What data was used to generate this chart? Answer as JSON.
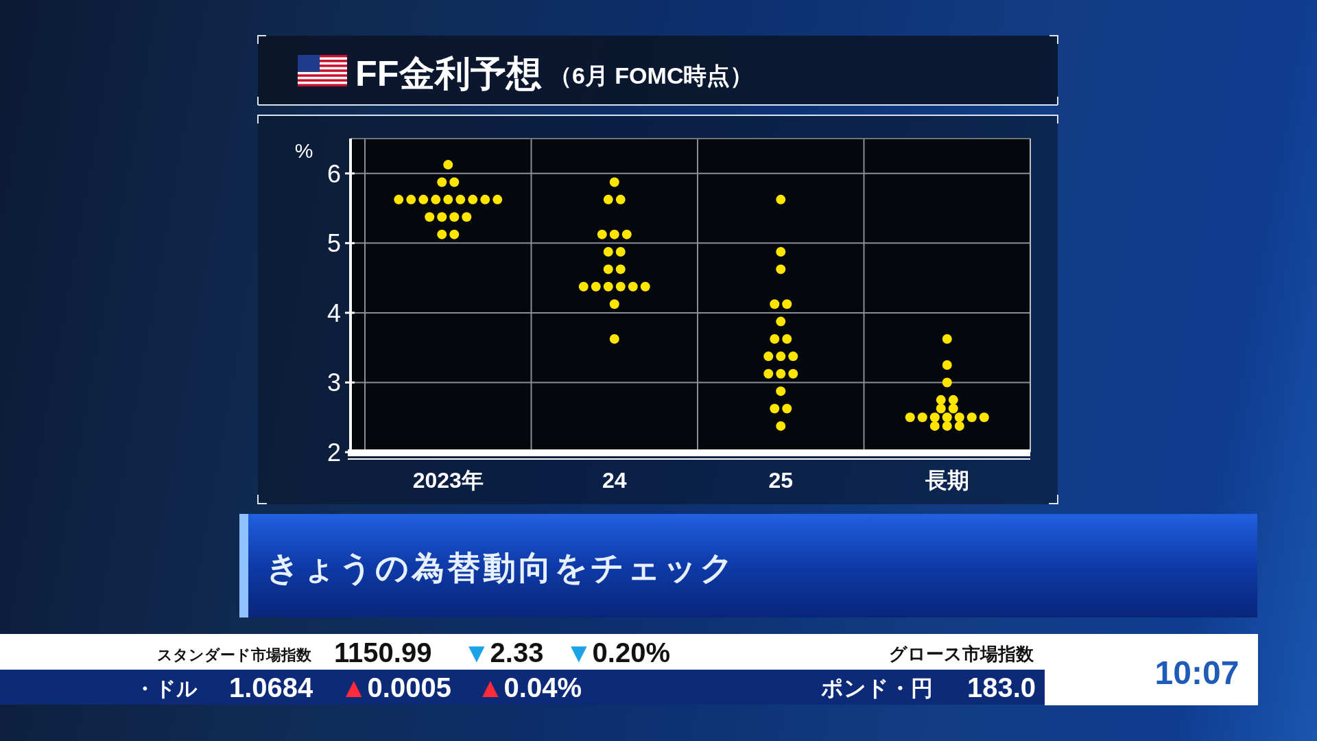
{
  "chart_data": {
    "type": "scatter",
    "title": "FF金利予想",
    "subtitle": "（6月 FOMC時点）",
    "ylabel": "%",
    "categories": [
      "2023年",
      "24",
      "25",
      "長期"
    ],
    "series": [
      {
        "color": "#ffe500",
        "x": [
          "2023年",
          "2023年",
          "2023年",
          "2023年",
          "2023年",
          "2023年",
          "2023年",
          "2023年",
          "2023年",
          "2023年",
          "2023年",
          "2023年",
          "2023年",
          "2023年",
          "2023年",
          "2023年",
          "2023年",
          "2023年",
          "24",
          "24",
          "24",
          "24",
          "24",
          "24",
          "24",
          "24",
          "24",
          "24",
          "24",
          "24",
          "24",
          "24",
          "24",
          "24",
          "24",
          "24",
          "25",
          "25",
          "25",
          "25",
          "25",
          "25",
          "25",
          "25",
          "25",
          "25",
          "25",
          "25",
          "25",
          "25",
          "25",
          "25",
          "25",
          "25",
          "長期",
          "長期",
          "長期",
          "長期",
          "長期",
          "長期",
          "長期",
          "長期",
          "長期",
          "長期",
          "長期",
          "長期",
          "長期",
          "長期",
          "長期",
          "長期",
          "長期"
        ],
        "values": [
          6.125,
          5.875,
          5.875,
          5.625,
          5.625,
          5.625,
          5.625,
          5.625,
          5.625,
          5.625,
          5.625,
          5.625,
          5.375,
          5.375,
          5.375,
          5.375,
          5.125,
          5.125,
          5.875,
          5.625,
          5.625,
          5.125,
          5.125,
          5.125,
          4.875,
          4.875,
          4.625,
          4.625,
          4.375,
          4.375,
          4.375,
          4.375,
          4.375,
          4.375,
          4.125,
          3.625,
          5.625,
          4.875,
          4.625,
          4.125,
          4.125,
          3.875,
          3.625,
          3.625,
          3.375,
          3.375,
          3.375,
          3.125,
          3.125,
          3.125,
          2.875,
          2.625,
          2.625,
          2.375,
          3.625,
          3.25,
          3.0,
          2.75,
          2.75,
          2.625,
          2.625,
          2.5,
          2.5,
          2.5,
          2.5,
          2.5,
          2.5,
          2.5,
          2.375,
          2.375,
          2.375
        ]
      }
    ],
    "ylim": [
      2,
      6.5
    ],
    "yticks": [
      2,
      3,
      4,
      5,
      6
    ],
    "grid": true,
    "marker": "circle",
    "annotations": [
      "きょうの為替動向をチェック",
      "スタンダード市場指数",
      "1150.99",
      "▼2.33",
      "▼0.20%",
      "グロース市場指数",
      "・ドル",
      "1.0684",
      "▲0.0005",
      "▲0.04%",
      "ポンド・円",
      "183.0",
      "10:07"
    ]
  }
}
